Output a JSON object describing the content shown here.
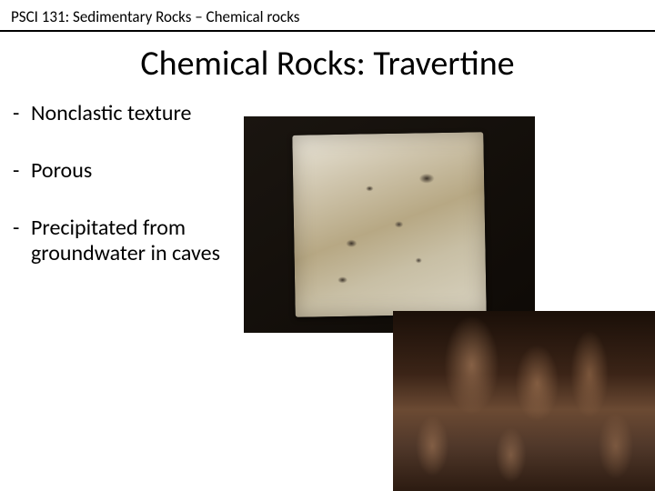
{
  "header": "PSCI 131: Sedimentary Rocks – Chemical rocks",
  "title": "Chemical Rocks: Travertine",
  "bullets": [
    "Nonclastic texture",
    "Porous",
    "Precipitated from groundwater in caves"
  ],
  "images": {
    "travertine_tile": {
      "description": "travertine stone tile",
      "bg_colors": [
        "#e8e4d8",
        "#cfc5ad",
        "#b7a884"
      ],
      "frame_color": "#1a1510"
    },
    "cave": {
      "description": "cave with stalactites and stalagmites",
      "palette": [
        "#1a0f08",
        "#6b4a33",
        "#c89670"
      ]
    }
  },
  "colors": {
    "text": "#000000",
    "background": "#ffffff",
    "divider": "#000000"
  },
  "typography": {
    "header_fontsize": 17,
    "title_fontsize": 38,
    "bullet_fontsize": 24,
    "font_family": "Calibri"
  }
}
